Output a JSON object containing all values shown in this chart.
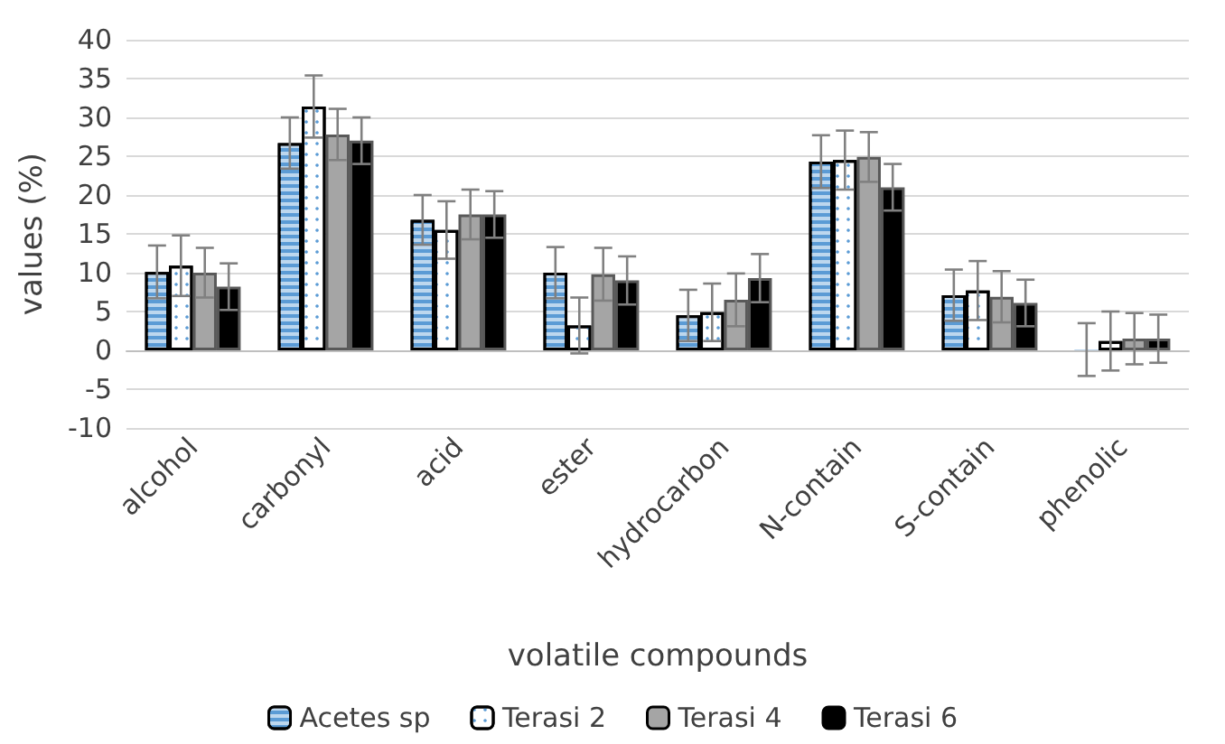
{
  "chart_data": {
    "type": "bar",
    "xlabel": "volatile compounds",
    "ylabel": "values (%)",
    "categories": [
      "alcohol",
      "carbonyl",
      "acid",
      "ester",
      "hydrocarbon",
      "N-contain",
      "S-contain",
      "phenolic"
    ],
    "series": [
      {
        "name": "Acetes sp",
        "color": "#5b9bd5",
        "values": [
          10.1,
          26.7,
          16.8,
          10.0,
          4.5,
          24.3,
          7.1,
          0.1
        ],
        "errors": [
          3.4,
          3.3,
          3.2,
          3.3,
          3.3,
          3.4,
          3.3,
          3.4
        ]
      },
      {
        "name": "Terasi 2",
        "color": "#ffffff",
        "values": [
          10.9,
          31.4,
          15.5,
          3.2,
          4.9,
          24.5,
          7.7,
          1.2
        ],
        "errors": [
          3.9,
          4.0,
          3.7,
          3.6,
          3.7,
          3.8,
          3.8,
          3.8
        ]
      },
      {
        "name": "Terasi 4",
        "color": "#a5a5a5",
        "values": [
          10.0,
          27.8,
          17.5,
          9.8,
          6.5,
          24.9,
          6.9,
          1.5
        ],
        "errors": [
          3.2,
          3.3,
          3.2,
          3.4,
          3.4,
          3.2,
          3.3,
          3.3
        ]
      },
      {
        "name": "Terasi 6",
        "color": "#000000",
        "values": [
          8.2,
          27.0,
          17.5,
          9.0,
          9.3,
          21.0,
          6.1,
          1.5
        ],
        "errors": [
          3.0,
          3.0,
          3.0,
          3.1,
          3.1,
          3.0,
          3.0,
          3.1
        ]
      }
    ],
    "ylim": [
      -10,
      40
    ],
    "yticks": [
      -10,
      -5,
      0,
      5,
      10,
      15,
      20,
      25,
      30,
      35,
      40
    ],
    "grid": "y",
    "legend": "bottom"
  }
}
